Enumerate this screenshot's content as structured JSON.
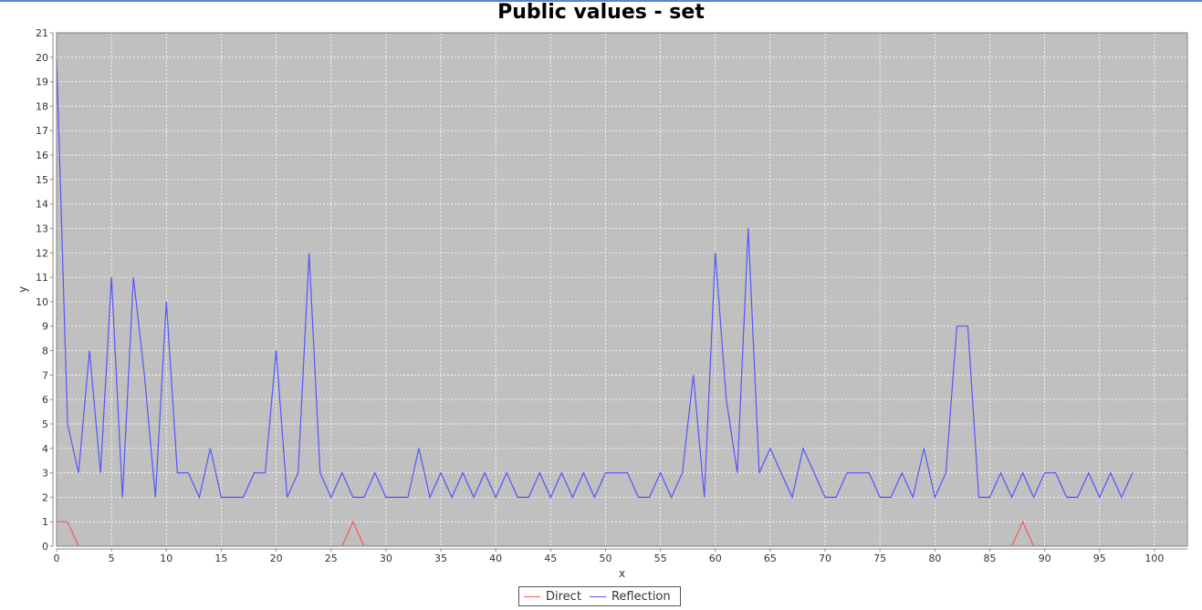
{
  "chart_data": {
    "type": "line",
    "title": "Public values - set",
    "xlabel": "x",
    "ylabel": "y",
    "xlim": [
      0,
      103
    ],
    "ylim": [
      0,
      21
    ],
    "x_ticks": [
      0,
      5,
      10,
      15,
      20,
      25,
      30,
      35,
      40,
      45,
      50,
      55,
      60,
      65,
      70,
      75,
      80,
      85,
      90,
      95,
      100
    ],
    "y_ticks": [
      0,
      1,
      2,
      3,
      4,
      5,
      6,
      7,
      8,
      9,
      10,
      11,
      12,
      13,
      14,
      15,
      16,
      17,
      18,
      19,
      20,
      21
    ],
    "grid": true,
    "legend_position": "bottom",
    "plot_background": "#c0c0c0",
    "series": [
      {
        "name": "Direct",
        "color": "#ff5555",
        "x": [
          0,
          1,
          2,
          3,
          4,
          5,
          6,
          7,
          8,
          9,
          10,
          11,
          12,
          13,
          14,
          15,
          16,
          17,
          18,
          19,
          20,
          21,
          22,
          23,
          24,
          25,
          26,
          27,
          28,
          29,
          30,
          31,
          32,
          33,
          34,
          35,
          36,
          37,
          38,
          39,
          40,
          41,
          42,
          43,
          44,
          45,
          46,
          47,
          48,
          49,
          50,
          51,
          52,
          53,
          54,
          55,
          56,
          57,
          58,
          59,
          60,
          61,
          62,
          63,
          64,
          65,
          66,
          67,
          68,
          69,
          70,
          71,
          72,
          73,
          74,
          75,
          76,
          77,
          78,
          79,
          80,
          81,
          82,
          83,
          84,
          85,
          86,
          87,
          88,
          89,
          90,
          91,
          92,
          93,
          94,
          95,
          96,
          97,
          98
        ],
        "values": [
          1,
          1,
          0,
          0,
          0,
          0,
          0,
          0,
          0,
          0,
          0,
          0,
          0,
          0,
          0,
          0,
          0,
          0,
          0,
          0,
          0,
          0,
          0,
          0,
          0,
          0,
          0,
          1,
          0,
          0,
          0,
          0,
          0,
          0,
          0,
          0,
          0,
          0,
          0,
          0,
          0,
          0,
          0,
          0,
          0,
          0,
          0,
          0,
          0,
          0,
          0,
          0,
          0,
          0,
          0,
          0,
          0,
          0,
          0,
          0,
          0,
          0,
          0,
          0,
          0,
          0,
          0,
          0,
          0,
          0,
          0,
          0,
          0,
          0,
          0,
          0,
          0,
          0,
          0,
          0,
          0,
          0,
          0,
          0,
          0,
          0,
          0,
          0,
          1,
          0,
          0,
          0,
          0,
          0,
          0,
          0,
          0,
          0,
          0
        ]
      },
      {
        "name": "Reflection",
        "color": "#5555ff",
        "x": [
          0,
          1,
          2,
          3,
          4,
          5,
          6,
          7,
          8,
          9,
          10,
          11,
          12,
          13,
          14,
          15,
          16,
          17,
          18,
          19,
          20,
          21,
          22,
          23,
          24,
          25,
          26,
          27,
          28,
          29,
          30,
          31,
          32,
          33,
          34,
          35,
          36,
          37,
          38,
          39,
          40,
          41,
          42,
          43,
          44,
          45,
          46,
          47,
          48,
          49,
          50,
          51,
          52,
          53,
          54,
          55,
          56,
          57,
          58,
          59,
          60,
          61,
          62,
          63,
          64,
          65,
          66,
          67,
          68,
          69,
          70,
          71,
          72,
          73,
          74,
          75,
          76,
          77,
          78,
          79,
          80,
          81,
          82,
          83,
          84,
          85,
          86,
          87,
          88,
          89,
          90,
          91,
          92,
          93,
          94,
          95,
          96,
          97,
          98
        ],
        "values": [
          20,
          5,
          3,
          8,
          3,
          11,
          2,
          11,
          7,
          2,
          10,
          3,
          3,
          2,
          4,
          2,
          2,
          2,
          3,
          3,
          8,
          2,
          3,
          12,
          3,
          2,
          3,
          2,
          2,
          3,
          2,
          2,
          2,
          4,
          2,
          3,
          2,
          3,
          2,
          3,
          2,
          3,
          2,
          2,
          3,
          2,
          3,
          2,
          3,
          2,
          3,
          3,
          3,
          2,
          2,
          3,
          2,
          3,
          7,
          2,
          12,
          6,
          3,
          13,
          3,
          4,
          3,
          2,
          4,
          3,
          2,
          2,
          3,
          3,
          3,
          2,
          2,
          3,
          2,
          4,
          2,
          3,
          9,
          9,
          2,
          2,
          3,
          2,
          3,
          2,
          3,
          3,
          2,
          2,
          3,
          2,
          3,
          2,
          3
        ]
      }
    ]
  }
}
